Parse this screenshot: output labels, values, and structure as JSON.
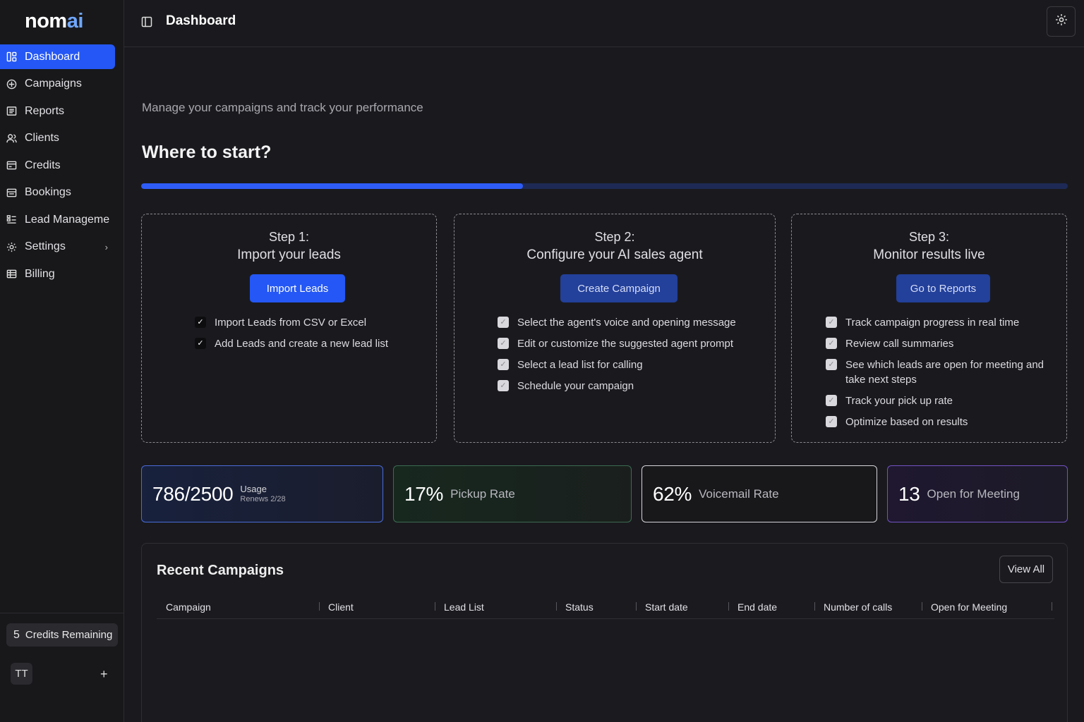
{
  "brand": {
    "name_prefix": "nom",
    "name_accent": "ai",
    "accent_color": "#6fa7ff"
  },
  "sidebar": {
    "items": [
      {
        "label": "Dashboard",
        "icon": "dashboard-icon",
        "active": true
      },
      {
        "label": "Campaigns",
        "icon": "campaign-icon"
      },
      {
        "label": "Reports",
        "icon": "report-icon"
      },
      {
        "label": "Clients",
        "icon": "users-icon"
      },
      {
        "label": "Credits",
        "icon": "credit-card-icon"
      },
      {
        "label": "Bookings",
        "icon": "calendar-icon"
      },
      {
        "label": "Lead Manageme",
        "icon": "list-icon"
      },
      {
        "label": "Settings",
        "icon": "gear-icon"
      },
      {
        "label": "Billing",
        "icon": "billing-icon"
      }
    ],
    "credits": {
      "count": "5",
      "label": "Credits Remaining"
    },
    "user_initials": "TT",
    "add_symbol": "+"
  },
  "header": {
    "title": "Dashboard"
  },
  "main": {
    "subtitle": "Manage your campaigns and track your performance",
    "heading": "Where to start?",
    "progress_fraction": 0.412,
    "steps": [
      {
        "step": "Step 1:",
        "title": "Import your leads",
        "button": "Import Leads",
        "items": [
          "Import Leads from CSV or Excel",
          "Add Leads and create a new lead list"
        ]
      },
      {
        "step": "Step 2:",
        "title": "Configure your AI sales agent",
        "button": "Create Campaign",
        "items": [
          "Select the agent's voice and opening message",
          "Edit or customize the suggested agent prompt",
          "Select a lead list for calling",
          "Schedule your campaign"
        ]
      },
      {
        "step": "Step 3:",
        "title": "Monitor results live",
        "button": "Go to Reports",
        "items": [
          "Track campaign progress in real time",
          "Review call summaries",
          "See which leads are open for meeting and take next steps",
          "Track your pick up rate",
          "Optimize based on results"
        ]
      }
    ],
    "stats": [
      {
        "value": "786/2500",
        "label": "Usage",
        "sublabel": "Renews 2/28"
      },
      {
        "value": "17%",
        "label": "Pickup Rate"
      },
      {
        "value": "62%",
        "label": "Voicemail Rate"
      },
      {
        "value": "13",
        "label": "Open for Meeting"
      }
    ],
    "recent": {
      "title": "Recent Campaigns",
      "view_all": "View All",
      "columns": [
        "Campaign",
        "Client",
        "Lead List",
        "Status",
        "Start date",
        "End date",
        "Number of calls",
        "Open for Meeting"
      ]
    }
  }
}
